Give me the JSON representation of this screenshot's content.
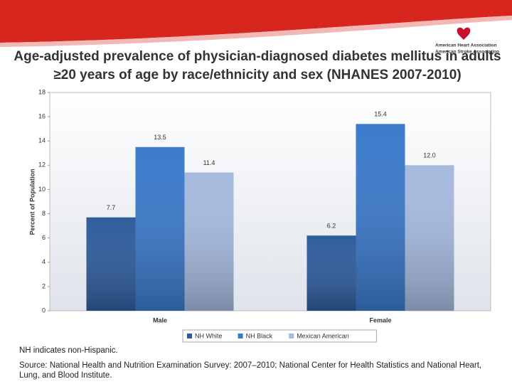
{
  "header": {
    "logos": [
      "American Heart Association",
      "American Stroke Association"
    ]
  },
  "chart_data": {
    "type": "bar",
    "title": [
      "Age-adjusted prevalence of physician-diagnosed diabetes mellitus in adults",
      "≥20 years of age by race/ethnicity and sex (NHANES 2007-2010)"
    ],
    "y_label": "Percent of Population",
    "categories": [
      "Male",
      "Female"
    ],
    "series": [
      {
        "name": "NH White",
        "color": "#2f5d9c",
        "values": [
          7.7,
          6.2
        ]
      },
      {
        "name": "NH Black",
        "color": "#3b7acb",
        "values": [
          13.5,
          15.4
        ]
      },
      {
        "name": "Mexican American",
        "color": "#a6badf",
        "values": [
          11.4,
          12.0
        ],
        "value_labels": [
          "11.4",
          "12.0"
        ]
      }
    ],
    "ylim": [
      0,
      18
    ],
    "yticks": [
      0,
      2,
      4,
      6,
      8,
      10,
      12,
      14,
      16,
      18
    ],
    "grid": false,
    "legend": "bottom"
  },
  "notes": [
    "NH indicates non-Hispanic.",
    "Source: National Health and Nutrition Examination Survey: 2007–2010; National Center for Health Statistics and National Heart, Lung, and Blood Institute."
  ]
}
